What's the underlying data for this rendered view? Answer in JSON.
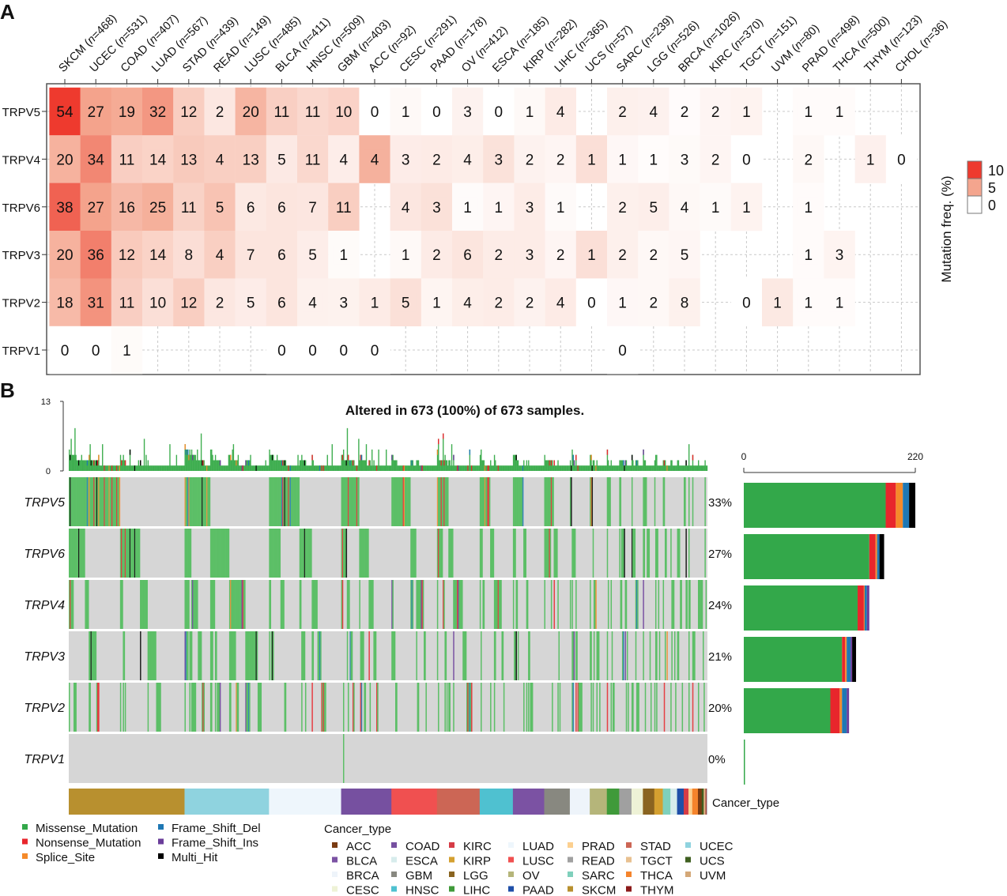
{
  "panel_labels": {
    "a": "A",
    "b": "B"
  },
  "chart_data": [
    {
      "type": "heatmap",
      "name": "mutation-frequency-heatmap",
      "columns": [
        {
          "name": "SKCM",
          "n": 468
        },
        {
          "name": "UCEC",
          "n": 531
        },
        {
          "name": "COAD",
          "n": 407
        },
        {
          "name": "LUAD",
          "n": 567
        },
        {
          "name": "STAD",
          "n": 439
        },
        {
          "name": "READ",
          "n": 149
        },
        {
          "name": "LUSC",
          "n": 485
        },
        {
          "name": "BLCA",
          "n": 411
        },
        {
          "name": "HNSC",
          "n": 509
        },
        {
          "name": "GBM",
          "n": 403
        },
        {
          "name": "ACC",
          "n": 92
        },
        {
          "name": "CESC",
          "n": 291
        },
        {
          "name": "PAAD",
          "n": 178
        },
        {
          "name": "OV",
          "n": 412
        },
        {
          "name": "ESCA",
          "n": 185
        },
        {
          "name": "KIRP",
          "n": 282
        },
        {
          "name": "LIHC",
          "n": 365
        },
        {
          "name": "UCS",
          "n": 57
        },
        {
          "name": "SARC",
          "n": 239
        },
        {
          "name": "LGG",
          "n": 526
        },
        {
          "name": "BRCA",
          "n": 1026
        },
        {
          "name": "KIRC",
          "n": 370
        },
        {
          "name": "TGCT",
          "n": 151
        },
        {
          "name": "UVM",
          "n": 80
        },
        {
          "name": "PRAD",
          "n": 498
        },
        {
          "name": "THCA",
          "n": 500
        },
        {
          "name": "THYM",
          "n": 123
        },
        {
          "name": "CHOL",
          "n": 36
        }
      ],
      "rows": [
        "TRPV5",
        "TRPV4",
        "TRPV6",
        "TRPV3",
        "TRPV2",
        "TRPV1"
      ],
      "values": [
        [
          54,
          27,
          19,
          32,
          12,
          2,
          20,
          11,
          11,
          10,
          0,
          1,
          0,
          3,
          0,
          1,
          4,
          null,
          2,
          4,
          2,
          2,
          1,
          null,
          1,
          1,
          null,
          null
        ],
        [
          20,
          34,
          11,
          14,
          13,
          4,
          13,
          5,
          11,
          4,
          4,
          3,
          2,
          4,
          3,
          2,
          2,
          1,
          1,
          1,
          3,
          2,
          0,
          null,
          2,
          null,
          1,
          0
        ],
        [
          38,
          27,
          16,
          25,
          11,
          5,
          6,
          6,
          7,
          11,
          null,
          4,
          3,
          1,
          1,
          3,
          1,
          null,
          2,
          5,
          4,
          1,
          1,
          null,
          1,
          null,
          null,
          null
        ],
        [
          20,
          36,
          12,
          14,
          8,
          4,
          7,
          6,
          5,
          1,
          null,
          1,
          2,
          6,
          2,
          3,
          2,
          1,
          2,
          2,
          5,
          null,
          null,
          null,
          1,
          3,
          null,
          null
        ],
        [
          18,
          31,
          11,
          10,
          12,
          2,
          5,
          6,
          4,
          3,
          1,
          5,
          1,
          4,
          2,
          2,
          4,
          0,
          1,
          2,
          8,
          null,
          0,
          1,
          1,
          1,
          null,
          null
        ],
        [
          0,
          0,
          1,
          null,
          null,
          null,
          null,
          0,
          0,
          0,
          0,
          null,
          null,
          null,
          null,
          null,
          null,
          null,
          0,
          null,
          null,
          null,
          null,
          null,
          null,
          null,
          null,
          null
        ]
      ],
      "value_meaning": "mutated sample count; color = count / n (%)",
      "legend": {
        "title": "Mutation freq. (%)",
        "ticks": [
          "10",
          "5",
          "0"
        ],
        "range": [
          0,
          10
        ]
      },
      "colors": {
        "low": "#ffffff",
        "mid": "#f4a58e",
        "high": "#ee3a2e"
      }
    },
    {
      "type": "heatmap",
      "name": "oncoprint",
      "title": "Altered in 673 (100%) of 673 samples.",
      "total_samples": 673,
      "genes": [
        "TRPV5",
        "TRPV6",
        "TRPV4",
        "TRPV3",
        "TRPV2",
        "TRPV1"
      ],
      "percent_altered": [
        "33%",
        "27%",
        "24%",
        "21%",
        "20%",
        "0%"
      ],
      "top_bar": {
        "ylim": [
          0,
          13
        ],
        "tick_labels": [
          "13",
          "0"
        ]
      },
      "annotation_label": "Cancer_type",
      "cancer_type_order": [
        {
          "type": "SKCM",
          "samples": 122
        },
        {
          "type": "UCEC",
          "samples": 89
        },
        {
          "type": "LUAD",
          "samples": 76
        },
        {
          "type": "COAD",
          "samples": 53
        },
        {
          "type": "LUSC",
          "samples": 48
        },
        {
          "type": "STAD",
          "samples": 45
        },
        {
          "type": "HNSC",
          "samples": 35
        },
        {
          "type": "BLCA",
          "samples": 33
        },
        {
          "type": "GBM",
          "samples": 27
        },
        {
          "type": "BRCA",
          "samples": 21
        },
        {
          "type": "OV",
          "samples": 18
        },
        {
          "type": "LIHC",
          "samples": 13
        },
        {
          "type": "READ",
          "samples": 13
        },
        {
          "type": "CESC",
          "samples": 12
        },
        {
          "type": "LGG",
          "samples": 12
        },
        {
          "type": "KIRP",
          "samples": 9
        },
        {
          "type": "SARC",
          "samples": 8
        },
        {
          "type": "ESCA",
          "samples": 7
        },
        {
          "type": "PAAD",
          "samples": 7
        },
        {
          "type": "KIRC",
          "samples": 5
        },
        {
          "type": "PRAD",
          "samples": 4
        },
        {
          "type": "THCA",
          "samples": 6
        },
        {
          "type": "ACC",
          "samples": 4
        },
        {
          "type": "UCS",
          "samples": 2
        },
        {
          "type": "UVM",
          "samples": 1
        },
        {
          "type": "TGCT",
          "samples": 1
        },
        {
          "type": "THYM",
          "samples": 1
        },
        {
          "type": "CHOL",
          "samples": 1
        }
      ]
    },
    {
      "type": "bar",
      "name": "mutation-count-per-gene",
      "orientation": "horizontal",
      "stacked": true,
      "xlim": [
        0,
        220
      ],
      "tick_labels": [
        "0",
        "220"
      ],
      "categories": [
        "TRPV5",
        "TRPV6",
        "TRPV4",
        "TRPV3",
        "TRPV2",
        "TRPV1"
      ],
      "series": [
        {
          "name": "Missense_Mutation",
          "values": [
            182,
            161,
            146,
            126,
            111,
            1
          ]
        },
        {
          "name": "Nonsense_Mutation",
          "values": [
            13,
            8,
            8,
            4,
            12,
            0
          ]
        },
        {
          "name": "Splice_Site",
          "values": [
            9,
            2,
            1,
            2,
            3,
            0
          ]
        },
        {
          "name": "Frame_Shift_Del",
          "values": [
            8,
            3,
            3,
            5,
            6,
            0
          ]
        },
        {
          "name": "Frame_Shift_Ins",
          "values": [
            0,
            0,
            3,
            2,
            3,
            0
          ]
        },
        {
          "name": "Multi_Hit",
          "values": [
            8,
            6,
            0,
            5,
            0,
            0
          ]
        }
      ]
    }
  ],
  "mutation_legend": [
    {
      "label": "Missense_Mutation",
      "color": "#33a84a"
    },
    {
      "label": "Nonsense_Mutation",
      "color": "#e8262c"
    },
    {
      "label": "Splice_Site",
      "color": "#f58a2a"
    },
    {
      "label": "Frame_Shift_Del",
      "color": "#1f78b4"
    },
    {
      "label": "Frame_Shift_Ins",
      "color": "#6a3d9a"
    },
    {
      "label": "Multi_Hit",
      "color": "#000000"
    }
  ],
  "cancer_legend": {
    "title": "Cancer_type",
    "items": [
      {
        "label": "ACC",
        "color": "#7a3b12"
      },
      {
        "label": "BLCA",
        "color": "#7b52a3"
      },
      {
        "label": "BRCA",
        "color": "#eef4fa"
      },
      {
        "label": "CESC",
        "color": "#eef2d6"
      },
      {
        "label": "COAD",
        "color": "#7650a0"
      },
      {
        "label": "ESCA",
        "color": "#d7ecec"
      },
      {
        "label": "GBM",
        "color": "#888880"
      },
      {
        "label": "HNSC",
        "color": "#4fc1d0"
      },
      {
        "label": "KIRC",
        "color": "#d63c46"
      },
      {
        "label": "KIRP",
        "color": "#d4a030"
      },
      {
        "label": "LGG",
        "color": "#8a6420"
      },
      {
        "label": "LIHC",
        "color": "#3f9a3a"
      },
      {
        "label": "LUAD",
        "color": "#eef6fc"
      },
      {
        "label": "LUSC",
        "color": "#f05050"
      },
      {
        "label": "OV",
        "color": "#b5b57a"
      },
      {
        "label": "PAAD",
        "color": "#1f4fa8"
      },
      {
        "label": "PRAD",
        "color": "#fcd090"
      },
      {
        "label": "READ",
        "color": "#a0a0a0"
      },
      {
        "label": "SARC",
        "color": "#7fd0bc"
      },
      {
        "label": "SKCM",
        "color": "#b8902f"
      },
      {
        "label": "STAD",
        "color": "#cc6655"
      },
      {
        "label": "TGCT",
        "color": "#e8c090"
      },
      {
        "label": "THCA",
        "color": "#f5842c"
      },
      {
        "label": "THYM",
        "color": "#8b1a1a"
      },
      {
        "label": "UCEC",
        "color": "#8fd3df"
      },
      {
        "label": "UCS",
        "color": "#3f5f20"
      },
      {
        "label": "UVM",
        "color": "#d4a878"
      }
    ]
  }
}
